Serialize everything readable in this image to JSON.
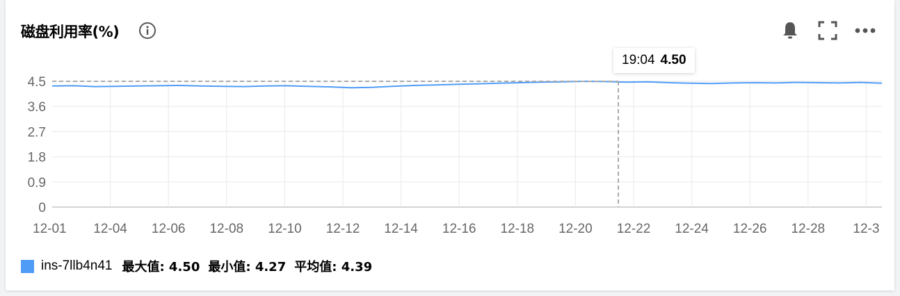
{
  "panel": {
    "title": "磁盘利用率(%)",
    "icons": [
      "info-icon",
      "bell-icon",
      "fullscreen-icon",
      "more-icon"
    ]
  },
  "tooltip": {
    "time": "19:04",
    "value": "4.50"
  },
  "legend": {
    "color": "#4f9cf7",
    "series_name": "ins-7llb4n41",
    "max": "最大值: 4.50",
    "min": "最小值: 4.27",
    "avg": "平均值: 4.39"
  },
  "chart_data": {
    "type": "line",
    "xlabel": "",
    "ylabel": "",
    "x_ticks": [
      "12-01",
      "12-04",
      "12-06",
      "12-08",
      "12-10",
      "12-12",
      "12-14",
      "12-16",
      "12-18",
      "12-20",
      "12-22",
      "12-24",
      "12-26",
      "12-28",
      "12-3"
    ],
    "y_ticks": [
      "0",
      "0.9",
      "1.8",
      "2.7",
      "3.6",
      "4.5"
    ],
    "ylim": [
      0,
      4.5
    ],
    "grid": true,
    "series": [
      {
        "name": "ins-7llb4n41",
        "color": "#4f9cf7",
        "values": [
          4.33,
          4.34,
          4.31,
          4.32,
          4.33,
          4.34,
          4.35,
          4.33,
          4.32,
          4.31,
          4.33,
          4.34,
          4.32,
          4.3,
          4.27,
          4.28,
          4.32,
          4.35,
          4.37,
          4.39,
          4.41,
          4.43,
          4.45,
          4.47,
          4.48,
          4.5,
          4.49,
          4.47,
          4.48,
          4.45,
          4.43,
          4.42,
          4.44,
          4.45,
          4.44,
          4.46,
          4.45,
          4.44,
          4.46,
          4.43
        ]
      }
    ],
    "crosshair": {
      "value": 4.5,
      "label": "19:04"
    }
  }
}
